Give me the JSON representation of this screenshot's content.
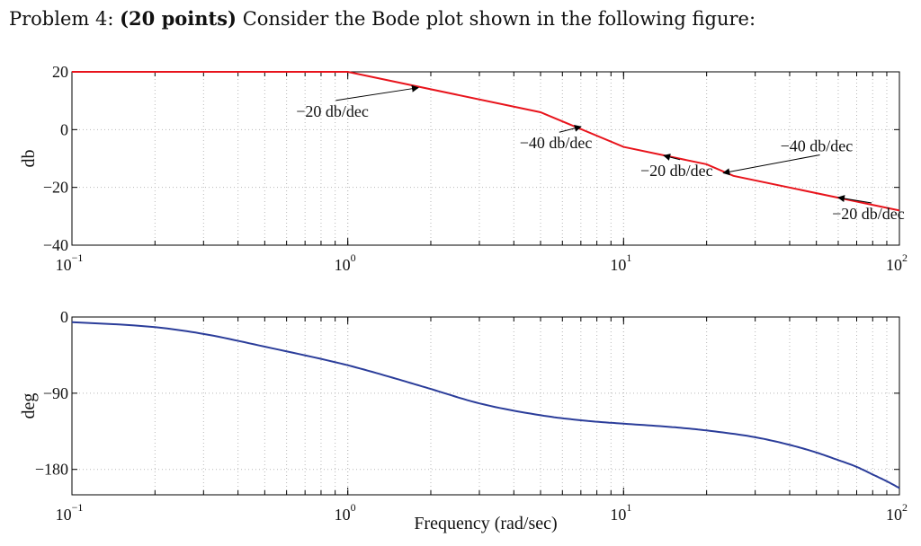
{
  "problem": {
    "prefix": "Problem 4:",
    "points": "(20 points)",
    "text": "Consider the Bode plot shown in the following figure:"
  },
  "colors": {
    "magnitude": "#e8141c",
    "phase": "#2b3d9a",
    "grid": "#b8b8b8",
    "axis": "#000000"
  },
  "chart_data": [
    {
      "type": "line",
      "panel": "magnitude",
      "xscale": "log",
      "xlim": [
        0.1,
        100
      ],
      "ylim": [
        -40,
        20
      ],
      "ylabel": "db",
      "xlabel": "",
      "grid": true,
      "xticks": [
        {
          "value": 0.1,
          "base": "10",
          "exp": "−1"
        },
        {
          "value": 1,
          "base": "10",
          "exp": "0"
        },
        {
          "value": 10,
          "base": "10",
          "exp": "1"
        },
        {
          "value": 100,
          "base": "10",
          "exp": "2"
        }
      ],
      "yticks": [
        {
          "value": 20,
          "label": "20"
        },
        {
          "value": 0,
          "label": "0"
        },
        {
          "value": -20,
          "label": "−20"
        },
        {
          "value": -40,
          "label": "−40"
        }
      ],
      "series": [
        {
          "x": [
            0.1,
            1,
            5,
            10,
            20,
            25,
            100
          ],
          "y": [
            20,
            20,
            6,
            -6,
            -12,
            -16,
            -28
          ]
        }
      ],
      "annotations": [
        {
          "text": "−20 db/dec",
          "x": 0.65,
          "y": 4.5,
          "arrow_to": [
            1.8,
            14.5
          ]
        },
        {
          "text": "−40 db/dec",
          "x": 4.2,
          "y": -6.5,
          "arrow_to": [
            7,
            1
          ]
        },
        {
          "text": "−20 db/dec",
          "x": 11.5,
          "y": -16,
          "arrow_to": [
            14,
            -9
          ]
        },
        {
          "text": "−40 db/dec",
          "x": 37,
          "y": -7.5,
          "arrow_to": [
            23,
            -15
          ]
        },
        {
          "text": "−20 db/dec",
          "x": 57,
          "y": -31,
          "arrow_to": [
            60,
            -23.5
          ]
        }
      ]
    },
    {
      "type": "line",
      "panel": "phase",
      "xscale": "log",
      "xlim": [
        0.1,
        100
      ],
      "ylim": [
        -210,
        0
      ],
      "ylabel": "deg",
      "xlabel": "Frequency (rad/sec)",
      "grid": true,
      "xticks": [
        {
          "value": 0.1,
          "base": "10",
          "exp": "−1"
        },
        {
          "value": 1,
          "base": "10",
          "exp": "0"
        },
        {
          "value": 10,
          "base": "10",
          "exp": "1"
        },
        {
          "value": 100,
          "base": "10",
          "exp": "2"
        }
      ],
      "yticks": [
        {
          "value": 0,
          "label": "0"
        },
        {
          "value": -90,
          "label": "−90"
        },
        {
          "value": -180,
          "label": "−180"
        }
      ],
      "series": [
        {
          "x": [
            0.1,
            0.2,
            0.3,
            0.5,
            1,
            1.5,
            2,
            3,
            5,
            7,
            10,
            15,
            20,
            30,
            40,
            50,
            60,
            70,
            80,
            90,
            100
          ],
          "y": [
            -6,
            -12,
            -20,
            -35,
            -57,
            -73,
            -85,
            -102,
            -116,
            -122,
            -126,
            -130,
            -134,
            -142,
            -151,
            -160,
            -169,
            -177,
            -186,
            -194,
            -202
          ]
        }
      ]
    }
  ]
}
